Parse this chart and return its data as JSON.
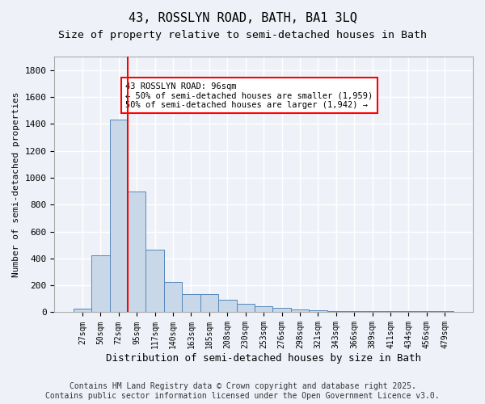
{
  "title": "43, ROSSLYN ROAD, BATH, BA1 3LQ",
  "subtitle": "Size of property relative to semi-detached houses in Bath",
  "xlabel": "Distribution of semi-detached houses by size in Bath",
  "ylabel": "Number of semi-detached properties",
  "bar_color": "#c8d8e8",
  "bar_edge_color": "#5588bb",
  "background_color": "#eef2f8",
  "grid_color": "#ffffff",
  "categories": [
    "27sqm",
    "50sqm",
    "72sqm",
    "95sqm",
    "117sqm",
    "140sqm",
    "163sqm",
    "185sqm",
    "208sqm",
    "230sqm",
    "253sqm",
    "276sqm",
    "298sqm",
    "321sqm",
    "343sqm",
    "366sqm",
    "389sqm",
    "411sqm",
    "434sqm",
    "456sqm",
    "479sqm"
  ],
  "values": [
    25,
    425,
    1430,
    900,
    465,
    225,
    135,
    135,
    95,
    60,
    45,
    30,
    20,
    15,
    10,
    10,
    10,
    10,
    10,
    10,
    10
  ],
  "ylim": [
    0,
    1900
  ],
  "yticks": [
    0,
    200,
    400,
    600,
    800,
    1000,
    1200,
    1400,
    1600,
    1800
  ],
  "red_line_x": 2.5,
  "annotation_title": "43 ROSSLYN ROAD: 96sqm",
  "annotation_line1": "← 50% of semi-detached houses are smaller (1,959)",
  "annotation_line2": "50% of semi-detached houses are larger (1,942) →",
  "footer_line1": "Contains HM Land Registry data © Crown copyright and database right 2025.",
  "footer_line2": "Contains public sector information licensed under the Open Government Licence v3.0.",
  "title_fontsize": 11,
  "subtitle_fontsize": 9.5,
  "annotation_fontsize": 7.5,
  "footer_fontsize": 7
}
